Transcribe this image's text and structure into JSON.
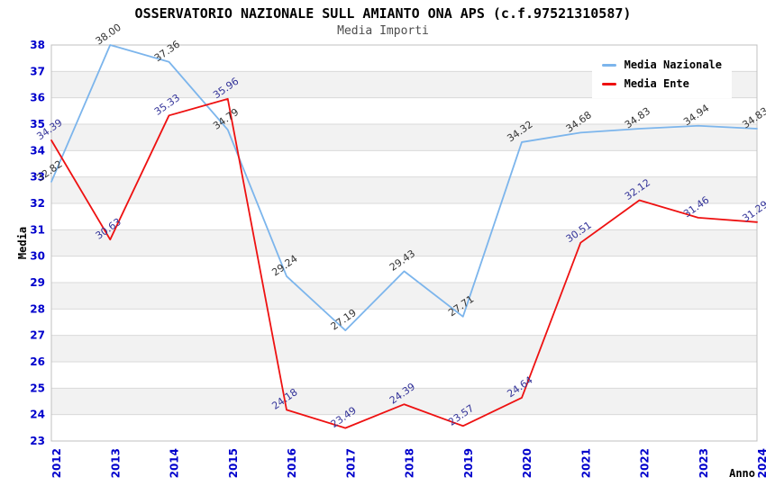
{
  "chart_data": {
    "type": "line",
    "title": "OSSERVATORIO NAZIONALE SULL AMIANTO ONA APS (c.f.97521310587)",
    "subtitle": "Media Importi",
    "xlabel": "Anno",
    "ylabel": "Media",
    "x": [
      2012,
      2013,
      2014,
      2015,
      2016,
      2017,
      2018,
      2019,
      2020,
      2021,
      2022,
      2023,
      2024
    ],
    "ylim": [
      23,
      38
    ],
    "y_tick_step": 1,
    "grid": true,
    "legend_position": "top-right",
    "series": [
      {
        "name": "Media Nazionale",
        "color": "#7cb5ec",
        "label_color": "#333333",
        "values": [
          32.82,
          38.0,
          37.36,
          34.79,
          29.24,
          27.19,
          29.43,
          27.71,
          34.32,
          34.68,
          34.83,
          34.94,
          34.83
        ]
      },
      {
        "name": "Media Ente",
        "color": "#ee1111",
        "label_color": "#333399",
        "values": [
          34.39,
          30.63,
          35.33,
          35.96,
          24.18,
          23.49,
          24.39,
          23.57,
          24.64,
          30.51,
          32.12,
          31.46,
          31.29
        ]
      }
    ],
    "styles": {
      "tick_label_color": "#0000cc",
      "band_color": "#f2f2f2",
      "gridline_color": "#d9d9d9",
      "border_color": "#c0c0c0",
      "title_color": "#000000",
      "subtitle_color": "#4d4d4d"
    }
  }
}
